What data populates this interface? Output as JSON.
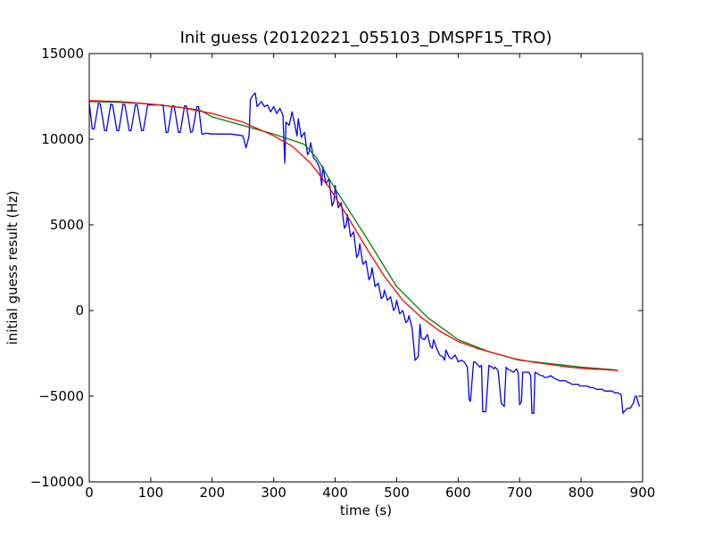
{
  "chart_data": {
    "type": "line",
    "title": "Init guess (20120221_055103_DMSPF15_TRO)",
    "xlabel": "time (s)",
    "ylabel": "initial guess result (Hz)",
    "xlim": [
      0,
      900
    ],
    "ylim": [
      -10000,
      15000
    ],
    "xticks": [
      0,
      100,
      200,
      300,
      400,
      500,
      600,
      700,
      800,
      900
    ],
    "yticks": [
      -10000,
      -5000,
      0,
      5000,
      10000,
      15000
    ],
    "xtick_labels": [
      "0",
      "100",
      "200",
      "300",
      "400",
      "500",
      "600",
      "700",
      "800",
      "900"
    ],
    "ytick_labels": [
      "−10000",
      "−5000",
      "0",
      "5000",
      "10000",
      "15000"
    ],
    "grid": false,
    "series": [
      {
        "color": "#0000ff",
        "x": [
          0,
          5,
          8,
          15,
          18,
          25,
          28,
          35,
          38,
          45,
          48,
          55,
          58,
          65,
          68,
          75,
          78,
          85,
          88,
          95,
          100,
          110,
          120,
          125,
          128,
          135,
          138,
          145,
          148,
          155,
          158,
          165,
          168,
          175,
          178,
          183,
          186,
          190,
          200,
          210,
          220,
          230,
          240,
          250,
          255,
          260,
          262,
          265,
          270,
          273,
          280,
          285,
          290,
          295,
          300,
          305,
          310,
          315,
          318,
          320,
          325,
          330,
          335,
          338,
          340,
          345,
          350,
          355,
          358,
          360,
          365,
          370,
          375,
          378,
          380,
          385,
          390,
          395,
          398,
          400,
          405,
          410,
          415,
          418,
          420,
          425,
          430,
          435,
          438,
          440,
          445,
          450,
          455,
          458,
          460,
          465,
          470,
          475,
          478,
          480,
          485,
          490,
          495,
          498,
          500,
          505,
          510,
          515,
          518,
          520,
          525,
          530,
          535,
          538,
          540,
          545,
          550,
          555,
          558,
          560,
          565,
          570,
          575,
          578,
          580,
          585,
          588,
          590,
          595,
          598,
          600,
          605,
          610,
          615,
          618,
          620,
          625,
          628,
          630,
          635,
          638,
          640,
          645,
          650,
          655,
          658,
          660,
          665,
          670,
          675,
          678,
          680,
          685,
          690,
          695,
          698,
          700,
          703,
          705,
          710,
          715,
          718,
          720,
          723,
          725,
          730,
          735,
          738,
          740,
          745,
          750,
          755,
          758,
          760,
          765,
          770,
          775,
          778,
          780,
          785,
          790,
          795,
          798,
          800,
          805,
          810,
          815,
          818,
          820,
          825,
          830,
          835,
          838,
          840,
          845,
          850,
          855,
          858,
          860,
          865,
          868,
          870,
          875,
          880,
          885,
          888,
          890,
          893,
          895
        ],
        "y": [
          12100,
          10600,
          10600,
          12100,
          12050,
          10500,
          10500,
          12050,
          12000,
          10500,
          10500,
          12050,
          12000,
          10500,
          10500,
          12000,
          12000,
          10500,
          10500,
          12000,
          12000,
          12000,
          12000,
          10400,
          10400,
          11950,
          11950,
          10400,
          10400,
          11950,
          11950,
          10400,
          10450,
          11900,
          11900,
          10300,
          10300,
          10350,
          10300,
          10300,
          10300,
          10300,
          10250,
          10200,
          9500,
          10200,
          12300,
          12500,
          12700,
          11900,
          12200,
          11900,
          12000,
          11600,
          11900,
          11500,
          11800,
          11400,
          8600,
          11000,
          10800,
          11600,
          10700,
          10200,
          11200,
          10100,
          10400,
          9100,
          9300,
          9800,
          8900,
          8700,
          8300,
          7300,
          8400,
          7400,
          7700,
          6100,
          6400,
          7300,
          6000,
          6300,
          4800,
          5000,
          5600,
          4300,
          4600,
          3100,
          3300,
          3900,
          2700,
          2900,
          1800,
          2000,
          2500,
          1400,
          1600,
          700,
          800,
          1200,
          600,
          800,
          0,
          200,
          600,
          -200,
          0,
          -700,
          -600,
          -300,
          -1000,
          -2900,
          -2700,
          -800,
          -1600,
          -1700,
          -1400,
          -2100,
          -2200,
          -1700,
          -2200,
          -2600,
          -2700,
          -2900,
          -2300,
          -2700,
          -2800,
          -2800,
          -2600,
          -2800,
          -3000,
          -2900,
          -3000,
          -3300,
          -5200,
          -5300,
          -3000,
          -3000,
          -3100,
          -3300,
          -3200,
          -5900,
          -5900,
          -3200,
          -3300,
          -3400,
          -3300,
          -3500,
          -5400,
          -5600,
          -3300,
          -3400,
          -3500,
          -3600,
          -3400,
          -3700,
          -5500,
          -5300,
          -3600,
          -3600,
          -3600,
          -3800,
          -6000,
          -6000,
          -3600,
          -3700,
          -3800,
          -3800,
          -3900,
          -3900,
          -3800,
          -3900,
          -4000,
          -4000,
          -4100,
          -4100,
          -4100,
          -4200,
          -4200,
          -4300,
          -4300,
          -4300,
          -4400,
          -4400,
          -4400,
          -4400,
          -4500,
          -4500,
          -4500,
          -4600,
          -4600,
          -4600,
          -4700,
          -4700,
          -4700,
          -4700,
          -4800,
          -4800,
          -4800,
          -4900,
          -6000,
          -5900,
          -5700,
          -5700,
          -5400,
          -5000,
          -5000,
          -5400,
          -5600
        ]
      },
      {
        "color": "#008000",
        "x": [
          0,
          50,
          100,
          150,
          180,
          200,
          250,
          300,
          350,
          370,
          400,
          450,
          500,
          550,
          600,
          650,
          700,
          750,
          800,
          850,
          860
        ],
        "y": [
          12200,
          12150,
          12050,
          11850,
          11700,
          11300,
          10800,
          10300,
          9700,
          8900,
          7100,
          4300,
          1400,
          -400,
          -1700,
          -2400,
          -2900,
          -3100,
          -3300,
          -3450,
          -3500
        ]
      },
      {
        "color": "#ff0000",
        "x": [
          0,
          50,
          100,
          150,
          200,
          250,
          300,
          330,
          360,
          390,
          420,
          450,
          480,
          510,
          540,
          570,
          600,
          630,
          660,
          690,
          720,
          750,
          780,
          810,
          840,
          860
        ],
        "y": [
          12250,
          12200,
          12050,
          11850,
          11500,
          11000,
          10200,
          9600,
          8600,
          7200,
          5500,
          3700,
          2000,
          600,
          -400,
          -1200,
          -1800,
          -2200,
          -2500,
          -2800,
          -3000,
          -3150,
          -3300,
          -3400,
          -3450,
          -3500
        ]
      }
    ]
  }
}
